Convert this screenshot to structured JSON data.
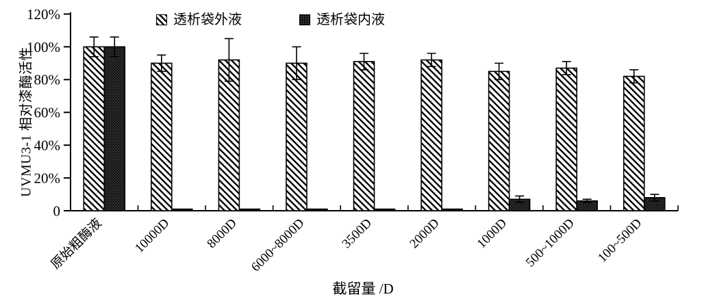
{
  "chart_data": {
    "type": "bar",
    "title": "",
    "categories": [
      "原始粗酶液",
      "10000D",
      "8000D",
      "6000~8000D",
      "3500D",
      "2000D",
      "1000D",
      "500~1000D",
      "100~500D"
    ],
    "series": [
      {
        "name": "透析袋外液",
        "pattern": "diagonal-hatch",
        "values": [
          100,
          90,
          92,
          90,
          91,
          92,
          85,
          87,
          82
        ],
        "errors": [
          6,
          5,
          13,
          10,
          5,
          4,
          5,
          4,
          4
        ]
      },
      {
        "name": "透析袋内液",
        "pattern": "dark-trellis",
        "values": [
          100,
          1,
          1,
          1,
          1,
          1,
          7,
          6,
          8
        ],
        "errors": [
          6,
          0,
          0,
          0,
          0,
          0,
          2,
          1,
          2
        ]
      }
    ],
    "xlabel": "截留量 /D",
    "ylabel": "UVMU3-1 相对漆酶活性",
    "ylim": [
      0,
      120
    ],
    "y_ticks": [
      0,
      20,
      40,
      60,
      80,
      100,
      120
    ],
    "y_tick_labels": [
      "0",
      "20%",
      "40%",
      "60%",
      "80%",
      "100%",
      "120%"
    ],
    "grid": false,
    "legend_position": "top",
    "error_bars": true,
    "x_tick_style": "inside-up-at-category-boundaries",
    "x_label_rotation_deg": 45,
    "colors": {
      "foreground": "#000000",
      "background": "#ffffff"
    }
  }
}
